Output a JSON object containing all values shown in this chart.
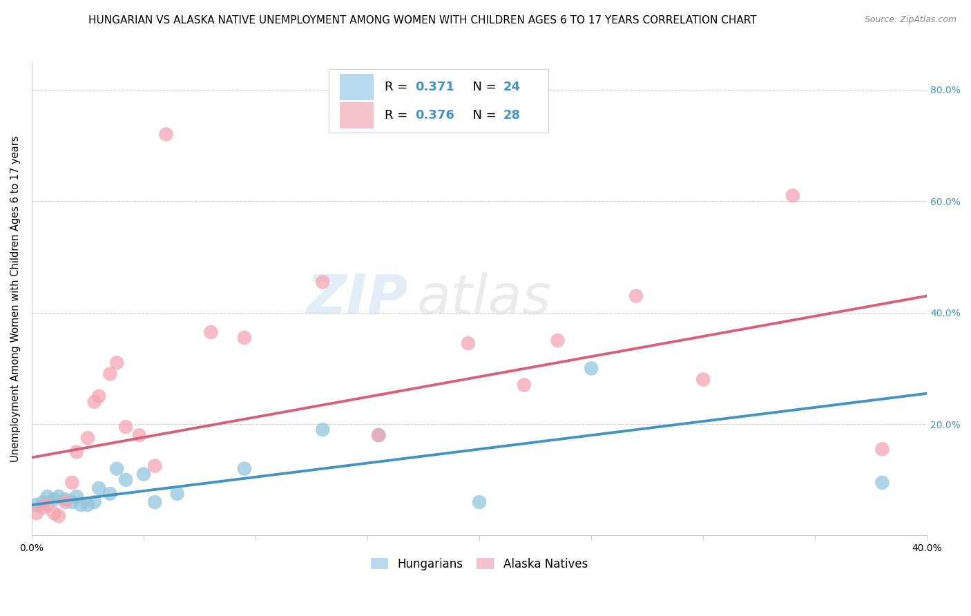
{
  "title": "HUNGARIAN VS ALASKA NATIVE UNEMPLOYMENT AMONG WOMEN WITH CHILDREN AGES 6 TO 17 YEARS CORRELATION CHART",
  "source": "Source: ZipAtlas.com",
  "ylabel": "Unemployment Among Women with Children Ages 6 to 17 years",
  "xlim": [
    0.0,
    0.4
  ],
  "ylim": [
    0.0,
    0.85
  ],
  "xticks": [
    0.0,
    0.05,
    0.1,
    0.15,
    0.2,
    0.25,
    0.3,
    0.35,
    0.4
  ],
  "xtick_labels": [
    "0.0%",
    "",
    "",
    "",
    "",
    "",
    "",
    "",
    "40.0%"
  ],
  "yticks": [
    0.0,
    0.2,
    0.4,
    0.6,
    0.8
  ],
  "right_ytick_labels": [
    "20.0%",
    "40.0%",
    "60.0%",
    "80.0%"
  ],
  "blue_R": "0.371",
  "blue_N": "24",
  "pink_R": "0.376",
  "pink_N": "28",
  "blue_color": "#92c5de",
  "pink_color": "#f4a5b0",
  "blue_line_color": "#4393c3",
  "pink_line_color": "#d6607a",
  "legend_blue_fill": "#b8d9f0",
  "legend_pink_fill": "#f4c2cc",
  "blue_scatter_x": [
    0.002,
    0.005,
    0.007,
    0.01,
    0.012,
    0.015,
    0.018,
    0.02,
    0.022,
    0.025,
    0.028,
    0.03,
    0.035,
    0.038,
    0.042,
    0.05,
    0.055,
    0.065,
    0.095,
    0.13,
    0.155,
    0.2,
    0.25,
    0.38
  ],
  "blue_scatter_y": [
    0.055,
    0.06,
    0.07,
    0.065,
    0.07,
    0.065,
    0.06,
    0.07,
    0.055,
    0.055,
    0.06,
    0.085,
    0.075,
    0.12,
    0.1,
    0.11,
    0.06,
    0.075,
    0.12,
    0.19,
    0.18,
    0.06,
    0.3,
    0.095
  ],
  "pink_scatter_x": [
    0.002,
    0.005,
    0.007,
    0.01,
    0.012,
    0.015,
    0.018,
    0.02,
    0.025,
    0.028,
    0.03,
    0.035,
    0.038,
    0.042,
    0.048,
    0.055,
    0.06,
    0.08,
    0.095,
    0.13,
    0.155,
    0.195,
    0.22,
    0.235,
    0.27,
    0.3,
    0.34,
    0.38
  ],
  "pink_scatter_y": [
    0.04,
    0.05,
    0.055,
    0.04,
    0.035,
    0.06,
    0.095,
    0.15,
    0.175,
    0.24,
    0.25,
    0.29,
    0.31,
    0.195,
    0.18,
    0.125,
    0.72,
    0.365,
    0.355,
    0.455,
    0.18,
    0.345,
    0.27,
    0.35,
    0.43,
    0.28,
    0.61,
    0.155
  ],
  "blue_trend_x": [
    0.0,
    0.4
  ],
  "blue_trend_y": [
    0.055,
    0.255
  ],
  "pink_trend_x": [
    0.0,
    0.4
  ],
  "pink_trend_y": [
    0.14,
    0.43
  ],
  "watermark_zip": "ZIP",
  "watermark_atlas": "atlas",
  "background_color": "#ffffff",
  "grid_color": "#cccccc",
  "title_fontsize": 11,
  "axis_label_fontsize": 10.5,
  "tick_fontsize": 10,
  "legend_fontsize": 13,
  "right_tick_color": "#4393c3"
}
